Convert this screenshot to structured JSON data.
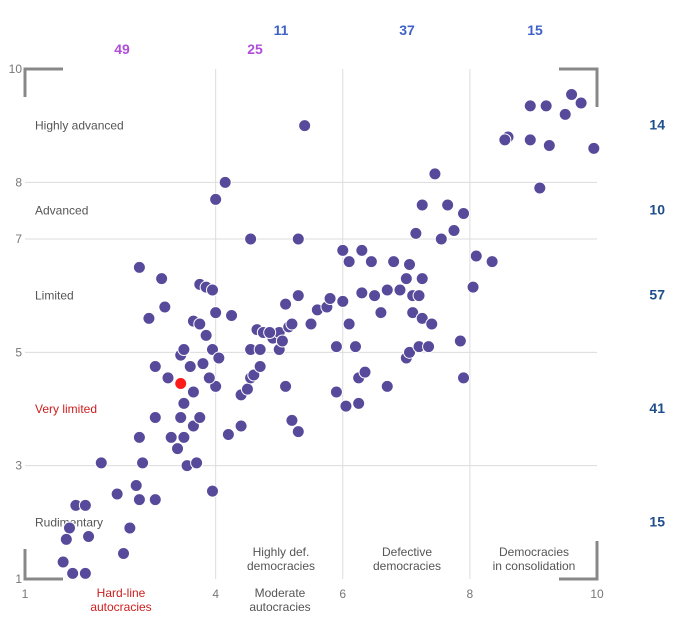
{
  "chart_data": {
    "type": "scatter",
    "title": "",
    "xlabel": "",
    "ylabel": "",
    "xlim": [
      1,
      10
    ],
    "ylim": [
      1,
      10
    ],
    "x_ticks": [
      "1",
      "4",
      "6",
      "8",
      "10"
    ],
    "x_tick_values": [
      1,
      4,
      6,
      8,
      10
    ],
    "y_ticks": [
      "1",
      "3",
      "5",
      "7",
      "8",
      "10"
    ],
    "y_tick_values": [
      1,
      3,
      5,
      7,
      8,
      10
    ],
    "grid": true,
    "x_categories": [
      {
        "label_lines": [
          "Hard-line",
          "autocracies"
        ],
        "count": "49",
        "center": 2.5,
        "color": "#cc1e1e",
        "count_color": "#b04dd9"
      },
      {
        "label_lines": [
          "Moderate",
          "autocracies"
        ],
        "count": "25",
        "center": 5,
        "color": "#555555",
        "count_color": "#b04dd9"
      },
      {
        "label_lines": [
          "Highly def.",
          "democracies"
        ],
        "count": "11",
        "center": 5,
        "color": "#555555",
        "count_color": "#3f62c9"
      },
      {
        "label_lines": [
          "Defective",
          "democracies"
        ],
        "count": "37",
        "center": 7,
        "color": "#555555",
        "count_color": "#3f62c9"
      },
      {
        "label_lines": [
          "Democracies",
          "in consolidation"
        ],
        "count": "15",
        "center": 9,
        "color": "#555555",
        "count_color": "#3f62c9"
      }
    ],
    "y_categories": [
      {
        "label": "Highly advanced",
        "center": 9.0,
        "count": "14",
        "color": "#555555"
      },
      {
        "label": "Advanced",
        "center": 7.5,
        "count": "10",
        "color": "#555555"
      },
      {
        "label": "Limited",
        "center": 6.0,
        "count": "57",
        "color": "#555555"
      },
      {
        "label": "Very limited",
        "center": 4.0,
        "count": "41",
        "color": "#cc1e1e"
      },
      {
        "label": "Rudimentary",
        "center": 2.0,
        "count": "15",
        "color": "#555555"
      }
    ],
    "colors": {
      "points": "#574a9b",
      "highlight": "#ff1a1a",
      "counts_right": "#1f4e8c",
      "grid": "#dcdcdc",
      "axis_text": "#777777",
      "corner_marks": "#888888"
    },
    "series": [
      {
        "points": [
          [
            1.6,
            1.3
          ],
          [
            1.75,
            1.1
          ],
          [
            1.95,
            1.1
          ],
          [
            1.7,
            1.9
          ],
          [
            1.8,
            2.3
          ],
          [
            1.95,
            2.3
          ],
          [
            1.65,
            1.7
          ],
          [
            2.0,
            1.75
          ],
          [
            2.55,
            1.45
          ],
          [
            2.65,
            1.9
          ],
          [
            2.45,
            2.5
          ],
          [
            2.75,
            2.65
          ],
          [
            2.8,
            2.4
          ],
          [
            2.2,
            3.05
          ],
          [
            2.85,
            3.05
          ],
          [
            3.05,
            2.4
          ],
          [
            2.8,
            3.5
          ],
          [
            3.05,
            3.85
          ],
          [
            3.3,
            3.5
          ],
          [
            3.4,
            3.3
          ],
          [
            3.5,
            3.5
          ],
          [
            3.55,
            3.0
          ],
          [
            3.45,
            3.85
          ],
          [
            3.5,
            4.1
          ],
          [
            3.7,
            3.05
          ],
          [
            3.65,
            3.7
          ],
          [
            3.75,
            3.85
          ],
          [
            3.95,
            2.55
          ],
          [
            4.0,
            4.4
          ],
          [
            4.2,
            3.55
          ],
          [
            4.4,
            3.7
          ],
          [
            4.4,
            4.25
          ],
          [
            4.5,
            4.35
          ],
          [
            4.55,
            4.55
          ],
          [
            4.6,
            4.6
          ],
          [
            4.7,
            4.75
          ],
          [
            4.9,
            5.25
          ],
          [
            5.0,
            5.35
          ],
          [
            5.15,
            5.45
          ],
          [
            4.55,
            5.05
          ],
          [
            4.7,
            5.05
          ],
          [
            5.0,
            5.05
          ],
          [
            5.05,
            5.2
          ],
          [
            4.65,
            5.4
          ],
          [
            4.75,
            5.35
          ],
          [
            4.85,
            5.35
          ],
          [
            3.05,
            4.75
          ],
          [
            3.25,
            4.55
          ],
          [
            3.45,
            4.95
          ],
          [
            3.5,
            5.05
          ],
          [
            3.6,
            4.75
          ],
          [
            3.65,
            4.3
          ],
          [
            3.8,
            4.8
          ],
          [
            3.9,
            4.55
          ],
          [
            3.95,
            5.05
          ],
          [
            4.05,
            4.9
          ],
          [
            3.85,
            5.3
          ],
          [
            3.2,
            5.8
          ],
          [
            3.65,
            5.55
          ],
          [
            3.75,
            5.5
          ],
          [
            4.0,
            5.7
          ],
          [
            4.25,
            5.65
          ],
          [
            3.15,
            6.3
          ],
          [
            3.75,
            6.2
          ],
          [
            3.85,
            6.15
          ],
          [
            3.95,
            6.1
          ],
          [
            2.95,
            5.6
          ],
          [
            2.8,
            6.5
          ],
          [
            4.55,
            7.0
          ],
          [
            4.0,
            7.7
          ],
          [
            4.15,
            8.0
          ],
          [
            5.4,
            9.0
          ],
          [
            5.1,
            4.4
          ],
          [
            5.2,
            3.8
          ],
          [
            5.3,
            3.6
          ],
          [
            5.2,
            5.5
          ],
          [
            5.1,
            5.85
          ],
          [
            5.3,
            6.0
          ],
          [
            5.3,
            7.0
          ],
          [
            5.5,
            5.5
          ],
          [
            5.6,
            5.75
          ],
          [
            5.75,
            5.8
          ],
          [
            5.8,
            5.95
          ],
          [
            5.9,
            5.1
          ],
          [
            6.0,
            5.9
          ],
          [
            6.1,
            5.5
          ],
          [
            5.9,
            4.3
          ],
          [
            6.05,
            4.05
          ],
          [
            6.25,
            4.1
          ],
          [
            6.25,
            4.55
          ],
          [
            6.35,
            4.65
          ],
          [
            6.2,
            5.1
          ],
          [
            6.3,
            6.05
          ],
          [
            6.1,
            6.6
          ],
          [
            6.0,
            6.8
          ],
          [
            6.3,
            6.8
          ],
          [
            6.45,
            6.6
          ],
          [
            6.5,
            6.0
          ],
          [
            6.6,
            5.7
          ],
          [
            6.7,
            6.1
          ],
          [
            6.8,
            6.6
          ],
          [
            6.9,
            6.1
          ],
          [
            7.0,
            6.3
          ],
          [
            7.05,
            6.55
          ],
          [
            7.1,
            6.0
          ],
          [
            7.1,
            5.7
          ],
          [
            6.7,
            4.4
          ],
          [
            7.0,
            4.9
          ],
          [
            7.05,
            5.0
          ],
          [
            7.2,
            5.1
          ],
          [
            7.25,
            5.6
          ],
          [
            7.35,
            5.1
          ],
          [
            7.4,
            5.5
          ],
          [
            7.2,
            6.0
          ],
          [
            7.25,
            6.3
          ],
          [
            7.15,
            7.1
          ],
          [
            7.25,
            7.6
          ],
          [
            7.45,
            8.15
          ],
          [
            7.55,
            7.0
          ],
          [
            7.65,
            7.6
          ],
          [
            7.75,
            7.15
          ],
          [
            7.9,
            7.45
          ],
          [
            7.85,
            5.2
          ],
          [
            7.9,
            4.55
          ],
          [
            8.05,
            6.15
          ],
          [
            8.1,
            6.7
          ],
          [
            8.35,
            6.6
          ],
          [
            8.55,
            8.75
          ],
          [
            8.6,
            8.8
          ],
          [
            8.95,
            8.75
          ],
          [
            9.1,
            7.9
          ],
          [
            9.25,
            8.65
          ],
          [
            8.95,
            9.35
          ],
          [
            9.2,
            9.35
          ],
          [
            9.5,
            9.2
          ],
          [
            9.6,
            9.55
          ],
          [
            9.75,
            9.4
          ],
          [
            9.95,
            8.6
          ],
          [
            8.55,
            8.75
          ]
        ]
      }
    ],
    "highlight": {
      "x": 3.45,
      "y": 4.45
    }
  }
}
